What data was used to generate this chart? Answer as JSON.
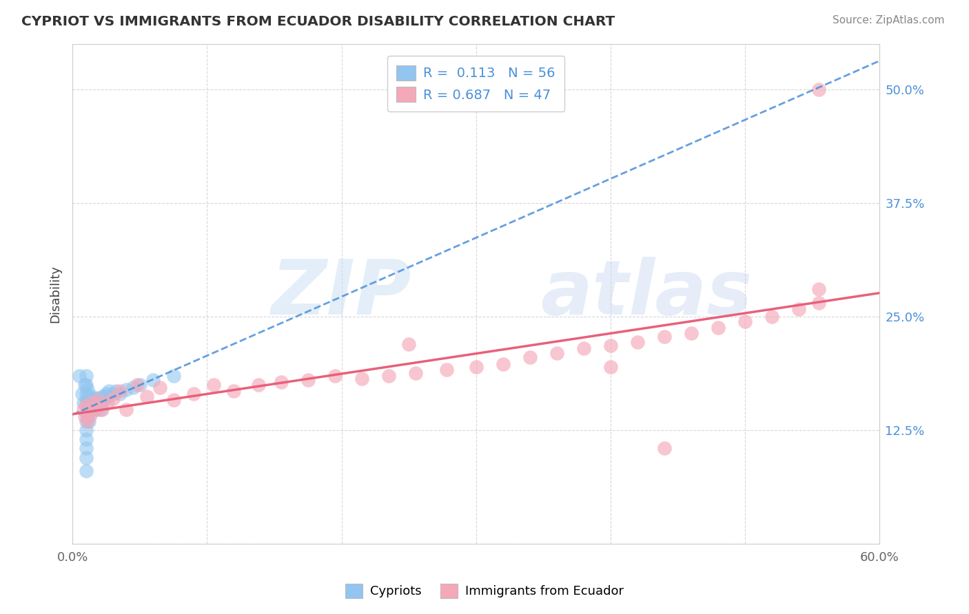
{
  "title": "CYPRIOT VS IMMIGRANTS FROM ECUADOR DISABILITY CORRELATION CHART",
  "source": "Source: ZipAtlas.com",
  "ylabel": "Disability",
  "xlim": [
    0.0,
    0.6
  ],
  "ylim": [
    0.0,
    0.55
  ],
  "xtick_positions": [
    0.0,
    0.1,
    0.2,
    0.3,
    0.4,
    0.5,
    0.6
  ],
  "xtick_labels": [
    "0.0%",
    "",
    "",
    "",
    "",
    "",
    "60.0%"
  ],
  "ytick_positions": [
    0.0,
    0.125,
    0.25,
    0.375,
    0.5
  ],
  "ytick_labels": [
    "",
    "12.5%",
    "25.0%",
    "37.5%",
    "50.0%"
  ],
  "cypriot_R": 0.113,
  "cypriot_N": 56,
  "ecuador_R": 0.687,
  "ecuador_N": 47,
  "blue_color": "#92c5f0",
  "pink_color": "#f5a8b8",
  "blue_line_color": "#4a90d9",
  "pink_line_color": "#e8607a",
  "cypriot_x": [
    0.005,
    0.007,
    0.008,
    0.009,
    0.01,
    0.01,
    0.01,
    0.01,
    0.01,
    0.01,
    0.01,
    0.01,
    0.01,
    0.01,
    0.01,
    0.011,
    0.011,
    0.011,
    0.011,
    0.012,
    0.012,
    0.012,
    0.013,
    0.013,
    0.014,
    0.014,
    0.015,
    0.015,
    0.015,
    0.015,
    0.016,
    0.016,
    0.017,
    0.017,
    0.018,
    0.018,
    0.019,
    0.02,
    0.02,
    0.021,
    0.021,
    0.022,
    0.022,
    0.023,
    0.024,
    0.025,
    0.026,
    0.027,
    0.03,
    0.032,
    0.035,
    0.04,
    0.045,
    0.05,
    0.06,
    0.075
  ],
  "cypriot_y": [
    0.185,
    0.165,
    0.155,
    0.175,
    0.08,
    0.095,
    0.105,
    0.115,
    0.125,
    0.135,
    0.145,
    0.155,
    0.165,
    0.175,
    0.185,
    0.14,
    0.15,
    0.16,
    0.17,
    0.135,
    0.145,
    0.158,
    0.148,
    0.158,
    0.148,
    0.16,
    0.15,
    0.155,
    0.158,
    0.162,
    0.148,
    0.155,
    0.15,
    0.16,
    0.148,
    0.155,
    0.152,
    0.155,
    0.16,
    0.155,
    0.148,
    0.155,
    0.162,
    0.158,
    0.162,
    0.165,
    0.162,
    0.168,
    0.165,
    0.168,
    0.165,
    0.17,
    0.172,
    0.175,
    0.18,
    0.185
  ],
  "ecuador_x": [
    0.008,
    0.009,
    0.01,
    0.011,
    0.013,
    0.015,
    0.017,
    0.019,
    0.022,
    0.026,
    0.03,
    0.035,
    0.04,
    0.048,
    0.055,
    0.065,
    0.075,
    0.09,
    0.105,
    0.12,
    0.138,
    0.155,
    0.175,
    0.195,
    0.215,
    0.235,
    0.255,
    0.278,
    0.3,
    0.32,
    0.34,
    0.36,
    0.38,
    0.4,
    0.42,
    0.44,
    0.46,
    0.48,
    0.5,
    0.52,
    0.54,
    0.555,
    0.555,
    0.25,
    0.4,
    0.44,
    0.555
  ],
  "ecuador_y": [
    0.148,
    0.14,
    0.152,
    0.135,
    0.142,
    0.155,
    0.148,
    0.158,
    0.148,
    0.155,
    0.16,
    0.168,
    0.148,
    0.175,
    0.162,
    0.172,
    0.158,
    0.165,
    0.175,
    0.168,
    0.175,
    0.178,
    0.18,
    0.185,
    0.182,
    0.185,
    0.188,
    0.192,
    0.195,
    0.198,
    0.205,
    0.21,
    0.215,
    0.218,
    0.222,
    0.228,
    0.232,
    0.238,
    0.245,
    0.25,
    0.258,
    0.265,
    0.28,
    0.22,
    0.195,
    0.105,
    0.5
  ],
  "watermark_zip_color": "#ddeeff",
  "watermark_atlas_color": "#dde8ff"
}
